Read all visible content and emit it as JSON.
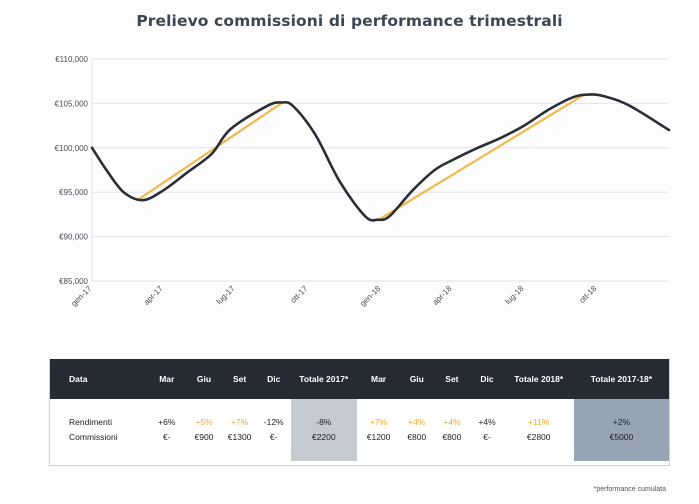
{
  "colors": {
    "line": "#2a2f36",
    "trend": "#f1b84a",
    "grid": "#e1e4e8",
    "positive_text": "#f0a92d",
    "header_bg": "#252b33",
    "total_2017_bg": "#c5cad1",
    "total_2017_18_bg": "#97a4b4"
  },
  "chart_data": {
    "type": "line",
    "title": "Prelievo commissioni di performance trimestrali",
    "xlabel": "",
    "ylabel": "",
    "ylim": [
      85000,
      110000
    ],
    "y_ticks": [
      "€85,000",
      "€90,000",
      "€95,000",
      "€100,000",
      "€105,000",
      "€110,000"
    ],
    "y_tick_values": [
      85000,
      90000,
      95000,
      100000,
      105000,
      110000
    ],
    "x_range": [
      "2017-01-01",
      "2018-12-31"
    ],
    "x_ticks": [
      "gen-17",
      "apr-17",
      "lug-17",
      "ott-17",
      "gen-18",
      "apr-18",
      "lug-18",
      "ott-18"
    ],
    "x_tick_dates": [
      "2017-01-01",
      "2017-04-01",
      "2017-07-01",
      "2017-10-01",
      "2018-01-01",
      "2018-04-01",
      "2018-07-01",
      "2018-10-01"
    ],
    "grid": true,
    "series": [
      {
        "points": [
          [
            "2017-01-01",
            100000
          ],
          [
            "2017-01-20",
            97400
          ],
          [
            "2017-02-10",
            95000
          ],
          [
            "2017-03-06",
            94100
          ],
          [
            "2017-04-01",
            95200
          ],
          [
            "2017-05-01",
            97200
          ],
          [
            "2017-06-01",
            99300
          ],
          [
            "2017-06-25",
            102100
          ],
          [
            "2017-08-10",
            104700
          ],
          [
            "2017-08-28",
            105100
          ],
          [
            "2017-09-12",
            104700
          ],
          [
            "2017-10-10",
            101500
          ],
          [
            "2017-11-10",
            96200
          ],
          [
            "2017-12-12",
            92300
          ],
          [
            "2017-12-28",
            91900
          ],
          [
            "2018-01-12",
            92300
          ],
          [
            "2018-02-10",
            95200
          ],
          [
            "2018-03-10",
            97500
          ],
          [
            "2018-04-01",
            98600
          ],
          [
            "2018-05-01",
            99900
          ],
          [
            "2018-06-01",
            101100
          ],
          [
            "2018-07-01",
            102500
          ],
          [
            "2018-08-01",
            104300
          ],
          [
            "2018-09-01",
            105700
          ],
          [
            "2018-09-22",
            106000
          ],
          [
            "2018-10-10",
            105800
          ],
          [
            "2018-11-10",
            104800
          ],
          [
            "2018-12-31",
            102000
          ]
        ]
      },
      {
        "points": [
          [
            "2017-03-01",
            94200
          ],
          [
            "2017-08-28",
            105000
          ],
          [
            "2017-12-31",
            92000
          ],
          [
            "2018-09-15",
            106000
          ]
        ]
      }
    ]
  },
  "table": {
    "headers": [
      "Data",
      "Mar",
      "Giu",
      "Set",
      "Dic",
      "Totale 2017*",
      "Mar",
      "Giu",
      "Set",
      "Dic",
      "Totale 2018*",
      "Totale 2017-18*"
    ],
    "rows": [
      {
        "label": "Rendimenti",
        "cells": [
          "+6%",
          "+5%",
          "+7%",
          "-12%",
          "-8%",
          "+7%",
          "+4%",
          "+4%",
          "+4%",
          "+11%",
          "+2%"
        ]
      },
      {
        "label": "Commissioni",
        "cells": [
          "€-",
          "€900",
          "€1300",
          "€-",
          "€2200",
          "€1200",
          "€800",
          "€800",
          "€-",
          "€2800",
          "€5000"
        ]
      }
    ]
  },
  "footnote": "*performance cumulata"
}
